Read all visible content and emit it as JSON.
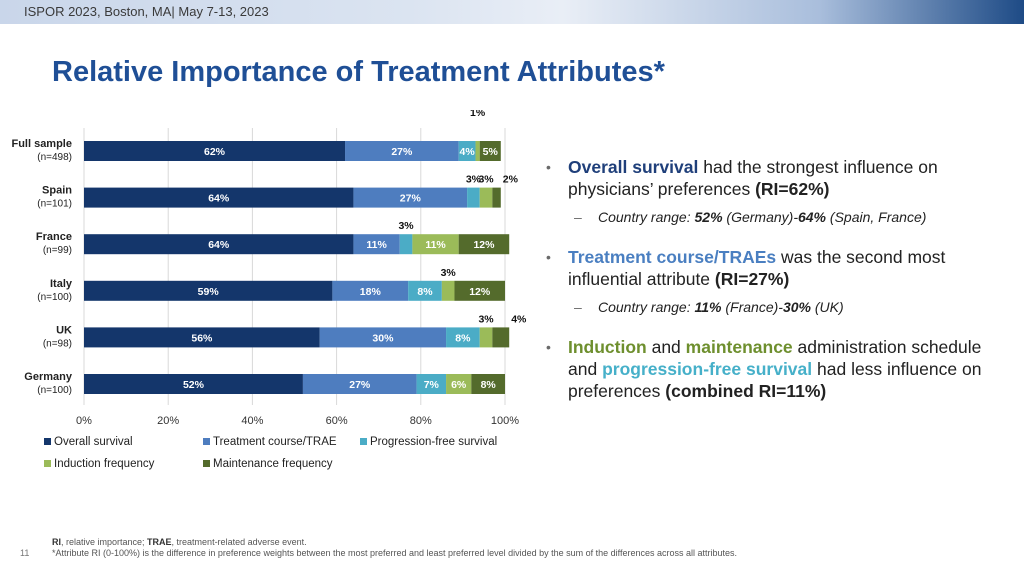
{
  "header": {
    "conference": "ISPOR 2023, Boston, MA| May 7-13, 2023"
  },
  "slide": {
    "title": "Relative Importance of Treatment Attributes*",
    "page_number": "11"
  },
  "colors": {
    "overall_survival": "#14366b",
    "treatment_course": "#4e7dbf",
    "progression_free": "#4bacc6",
    "induction": "#9bbb59",
    "maintenance": "#546b2c"
  },
  "chart_data": {
    "type": "bar",
    "orientation": "horizontal",
    "stacked": true,
    "categories": [
      {
        "name": "Full sample",
        "n": "(n=498)"
      },
      {
        "name": "Spain",
        "n": "(n=101)"
      },
      {
        "name": "France",
        "n": "(n=99)"
      },
      {
        "name": "Italy",
        "n": "(n=100)"
      },
      {
        "name": "UK",
        "n": "(n=98)"
      },
      {
        "name": "Germany",
        "n": "(n=100)"
      }
    ],
    "series": [
      {
        "name": "Overall survival",
        "values": [
          62,
          64,
          64,
          59,
          56,
          52
        ]
      },
      {
        "name": "Treatment course/TRAE",
        "values": [
          27,
          27,
          11,
          18,
          30,
          27
        ]
      },
      {
        "name": "Progression-free survival",
        "values": [
          4,
          3,
          3,
          8,
          8,
          7
        ]
      },
      {
        "name": "Induction frequency",
        "values": [
          1,
          3,
          11,
          3,
          3,
          6
        ]
      },
      {
        "name": "Maintenance frequency",
        "values": [
          5,
          2,
          12,
          12,
          4,
          8
        ]
      }
    ],
    "label_placement": [
      [
        "inside",
        "inside",
        "inside",
        "above",
        "inside"
      ],
      [
        "inside",
        "inside",
        "above",
        "above",
        "right"
      ],
      [
        "inside",
        "inside",
        "above",
        "inside",
        "inside"
      ],
      [
        "inside",
        "inside",
        "inside",
        "above",
        "inside"
      ],
      [
        "inside",
        "inside",
        "inside",
        "above",
        "right"
      ],
      [
        "inside",
        "inside",
        "inside",
        "inside",
        "inside"
      ]
    ],
    "xticks": [
      "0%",
      "20%",
      "40%",
      "60%",
      "80%",
      "100%"
    ],
    "xlim": [
      0,
      100
    ],
    "legend_position": "bottom",
    "grid": true
  },
  "bullets": [
    {
      "parts": [
        {
          "text": "Overall survival",
          "style": "navy"
        },
        {
          "text": " had the strongest influence on physicians’ preferences ",
          "style": ""
        },
        {
          "text": "(RI=62%)",
          "style": "bold"
        }
      ],
      "sub": [
        {
          "text": "Country range: ",
          "style": ""
        },
        {
          "text": "52%",
          "style": "bold"
        },
        {
          "text": " (Germany)-",
          "style": ""
        },
        {
          "text": "64%",
          "style": "bold"
        },
        {
          "text": " (Spain, France)",
          "style": ""
        }
      ]
    },
    {
      "parts": [
        {
          "text": "Treatment course/TRAEs",
          "style": "blue"
        },
        {
          "text": " was the second most influential attribute ",
          "style": ""
        },
        {
          "text": "(RI=27%)",
          "style": "bold"
        }
      ],
      "sub": [
        {
          "text": "Country range: ",
          "style": ""
        },
        {
          "text": "11%",
          "style": "bold"
        },
        {
          "text": " (France)-",
          "style": ""
        },
        {
          "text": "30%",
          "style": "bold"
        },
        {
          "text": " (UK)",
          "style": ""
        }
      ]
    },
    {
      "parts": [
        {
          "text": "Induction",
          "style": "green"
        },
        {
          "text": " and ",
          "style": ""
        },
        {
          "text": "maintenance",
          "style": "green"
        },
        {
          "text": " administration schedule and ",
          "style": ""
        },
        {
          "text": "progression-free survival",
          "style": "cyan"
        },
        {
          "text": " had less influence on preferences ",
          "style": ""
        },
        {
          "text": "(combined RI=11%)",
          "style": "bold"
        }
      ],
      "sub": []
    }
  ],
  "footnote": {
    "line1_parts": [
      {
        "text": "RI",
        "style": "bold"
      },
      {
        "text": ", relative importance; ",
        "style": ""
      },
      {
        "text": "TRAE",
        "style": "bold"
      },
      {
        "text": ", treatment-related adverse event.",
        "style": ""
      }
    ],
    "line2": "*Attribute RI (0-100%) is the difference in preference weights between the most preferred and least preferred level divided by the sum of the differences across all attributes."
  }
}
